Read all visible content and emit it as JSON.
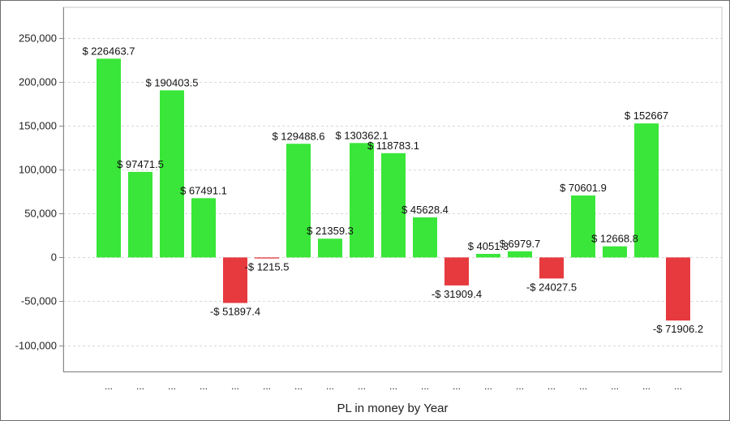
{
  "chart_data": {
    "type": "bar",
    "title": "",
    "xlabel": "PL in money by Year",
    "ylabel": "",
    "ylim": [
      -130000,
      285000
    ],
    "yticks": [
      -100000,
      -50000,
      0,
      50000,
      100000,
      150000,
      200000,
      250000
    ],
    "ytick_labels": [
      "-100,000",
      "-50,000",
      "0",
      "50,000",
      "100,000",
      "150,000",
      "200,000",
      "250,000"
    ],
    "grid": true,
    "legend": "none",
    "colors": {
      "positive": "#39e639",
      "negative": "#e63a3e",
      "grid": "#d8d8d8",
      "axis": "#8a8a8a"
    },
    "categories": [
      "...",
      "...",
      "...",
      "...",
      "...",
      "...",
      "...",
      "...",
      "...",
      "...",
      "...",
      "...",
      "...",
      "...",
      "...",
      "...",
      "...",
      "...",
      "..."
    ],
    "values": [
      226463.7,
      97471.5,
      190403.5,
      67491.1,
      -51897.4,
      -1215.5,
      129488.6,
      21359.3,
      130362.1,
      118783.1,
      45628.4,
      -31909.4,
      4051.3,
      6979.7,
      -24027.5,
      70601.9,
      12668.8,
      152667,
      -71906.2
    ],
    "data_labels": [
      "$ 226463.7",
      "$ 97471.5",
      "$ 190403.5",
      "$ 67491.1",
      "-$ 51897.4",
      "-$ 1215.5",
      "$ 129488.6",
      "$ 21359.3",
      "$ 130362.1",
      "$ 118783.1",
      "$ 45628.4",
      "-$ 31909.4",
      "$ 4051.3",
      "$ 6979.7",
      "-$ 24027.5",
      "$ 70601.9",
      "$ 12668.8",
      "$ 152667",
      "-$ 71906.2"
    ]
  }
}
